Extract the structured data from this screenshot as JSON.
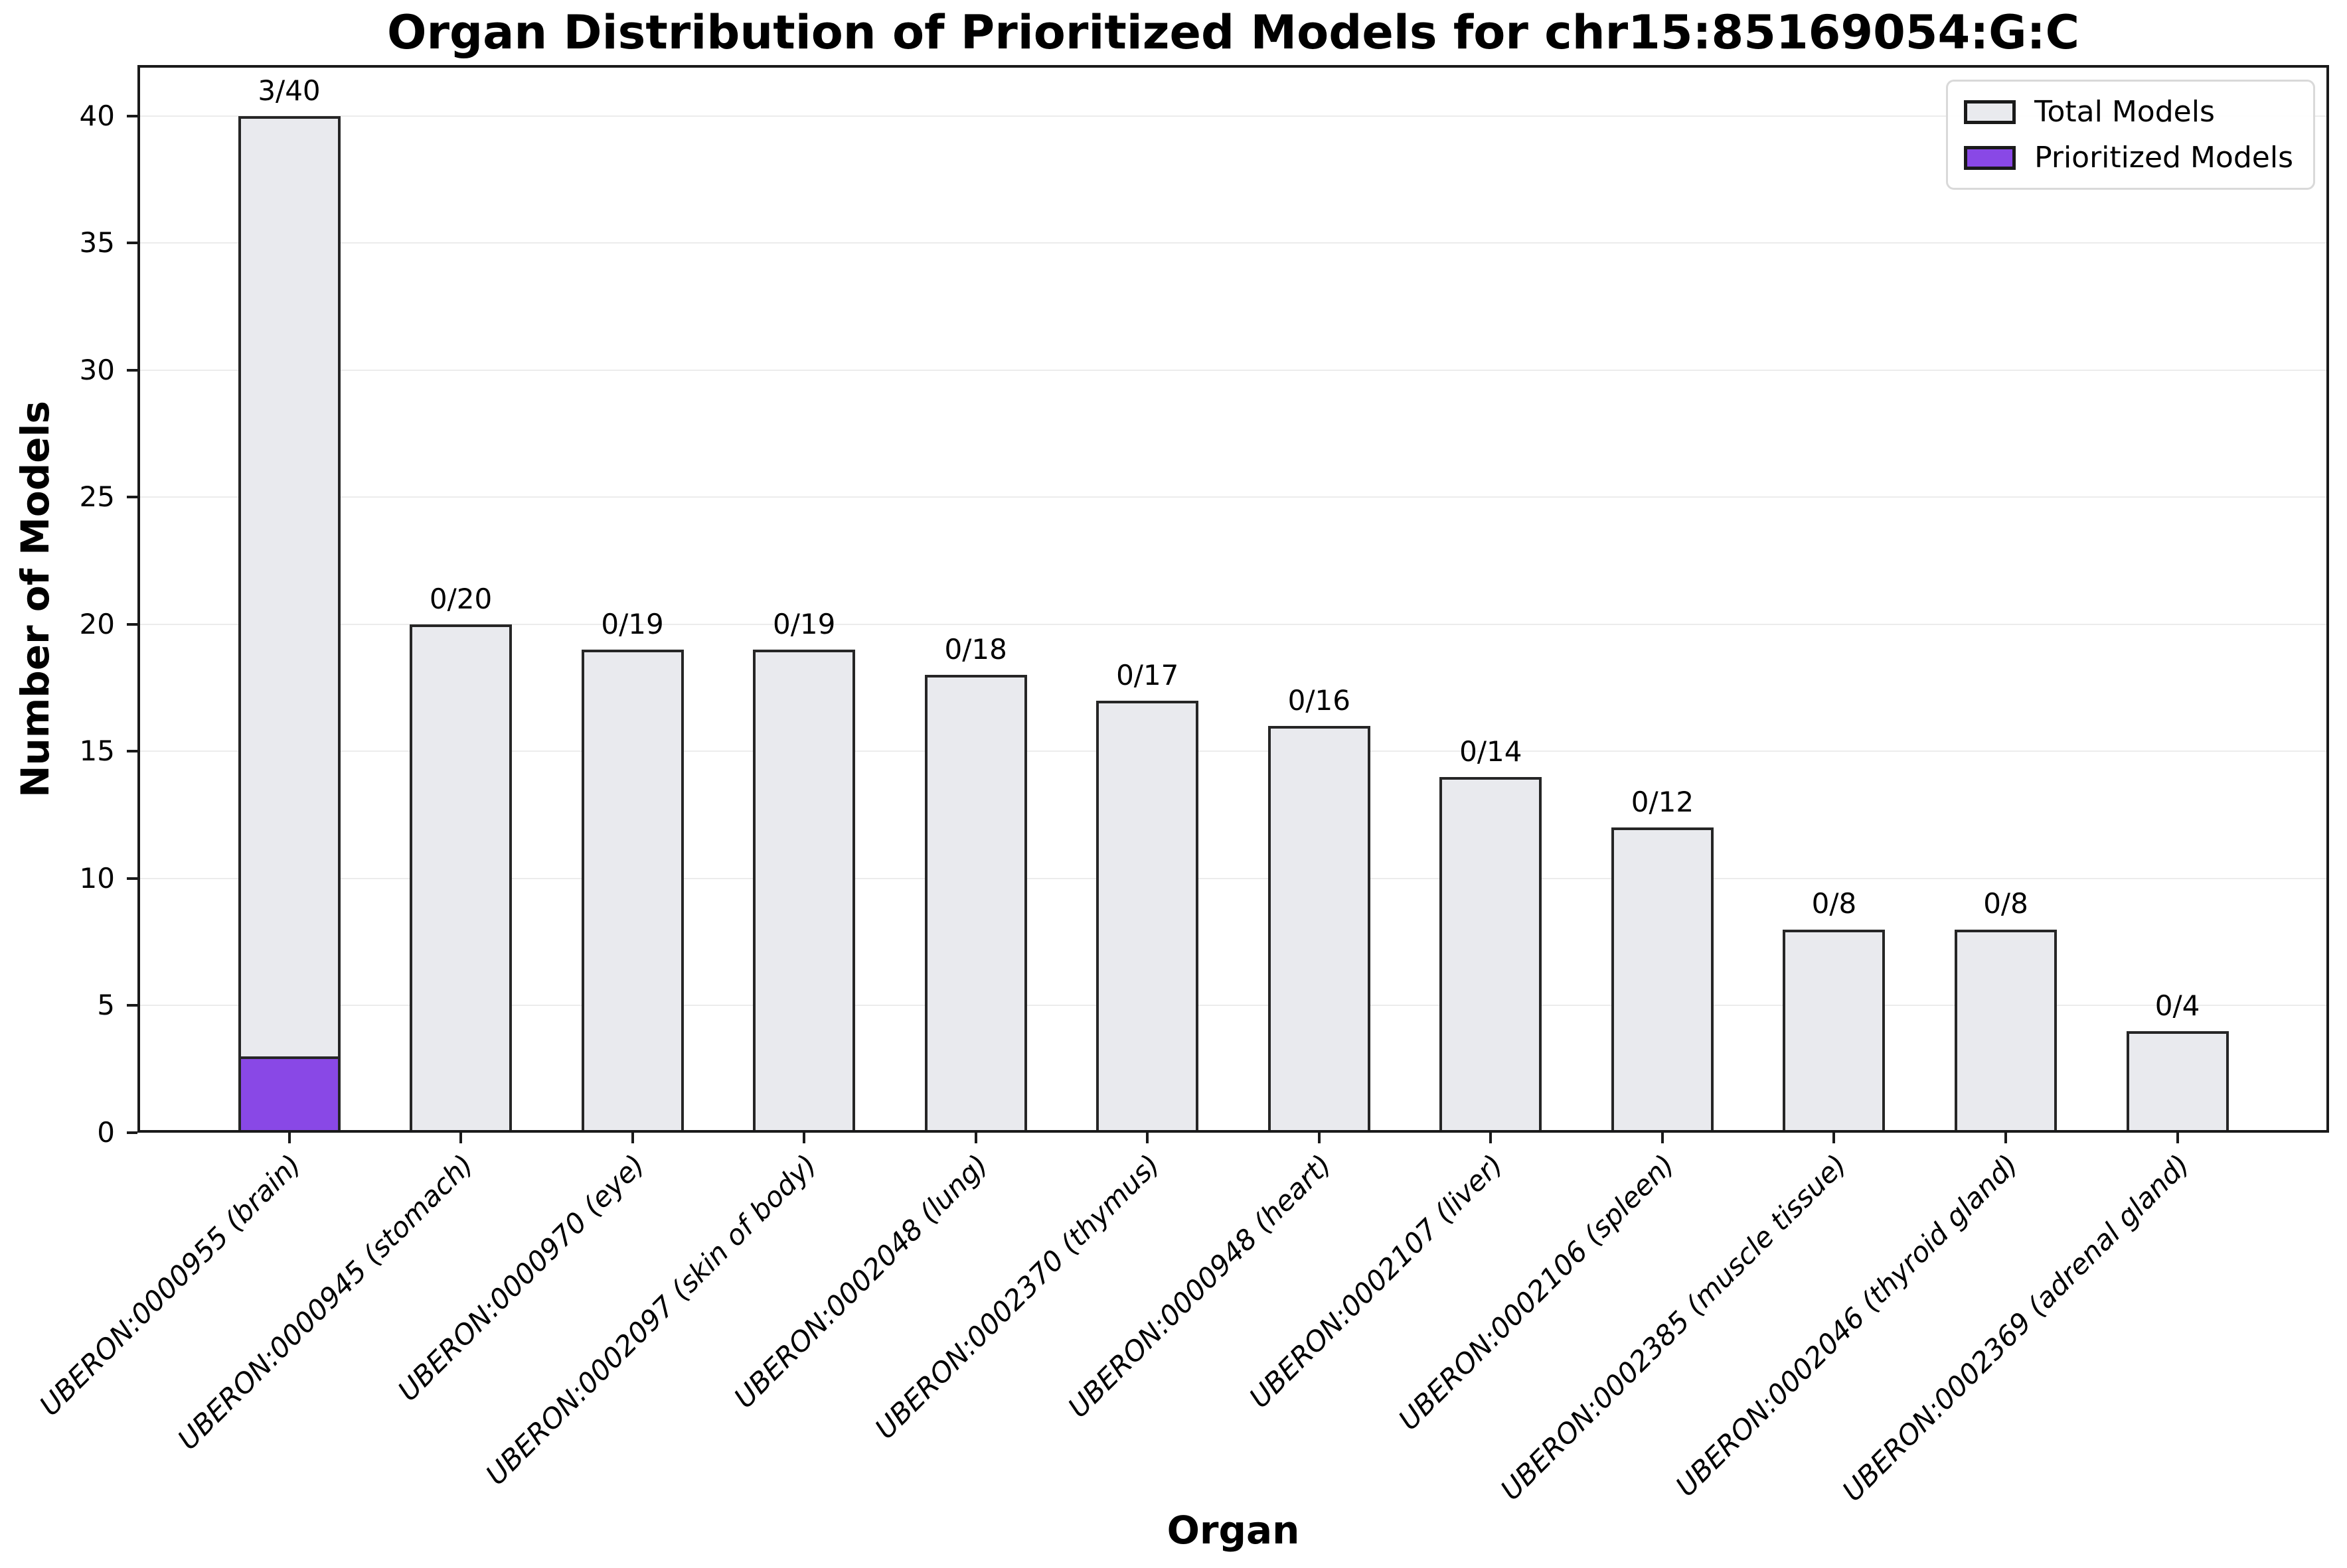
{
  "chart_data": {
    "type": "bar",
    "title": "Organ Distribution of Prioritized Models for chr15:85169054:G:C",
    "xlabel": "Organ",
    "ylabel": "Number of Models",
    "categories": [
      "UBERON:0000955 (brain)",
      "UBERON:0000945 (stomach)",
      "UBERON:0000970 (eye)",
      "UBERON:0002097 (skin of body)",
      "UBERON:0002048 (lung)",
      "UBERON:0002370 (thymus)",
      "UBERON:0000948 (heart)",
      "UBERON:0002107 (liver)",
      "UBERON:0002106 (spleen)",
      "UBERON:0002385 (muscle tissue)",
      "UBERON:0002046 (thyroid gland)",
      "UBERON:0002369 (adrenal gland)"
    ],
    "series": [
      {
        "name": "Total Models",
        "color": "#e9eaee",
        "values": [
          40,
          20,
          19,
          19,
          18,
          17,
          16,
          14,
          12,
          8,
          8,
          4
        ]
      },
      {
        "name": "Prioritized Models",
        "color": "#8948e6",
        "values": [
          3,
          0,
          0,
          0,
          0,
          0,
          0,
          0,
          0,
          0,
          0,
          0
        ]
      }
    ],
    "bar_value_labels": [
      "3/40",
      "0/20",
      "0/19",
      "0/19",
      "0/18",
      "0/17",
      "0/16",
      "0/14",
      "0/12",
      "0/8",
      "0/8",
      "0/4"
    ],
    "bar_edge_color": "#262626",
    "ylim": [
      0,
      42
    ],
    "yticks": [
      0,
      5,
      10,
      15,
      20,
      25,
      30,
      35,
      40
    ],
    "grid": "horizontal",
    "legend_position": "upper-right"
  }
}
